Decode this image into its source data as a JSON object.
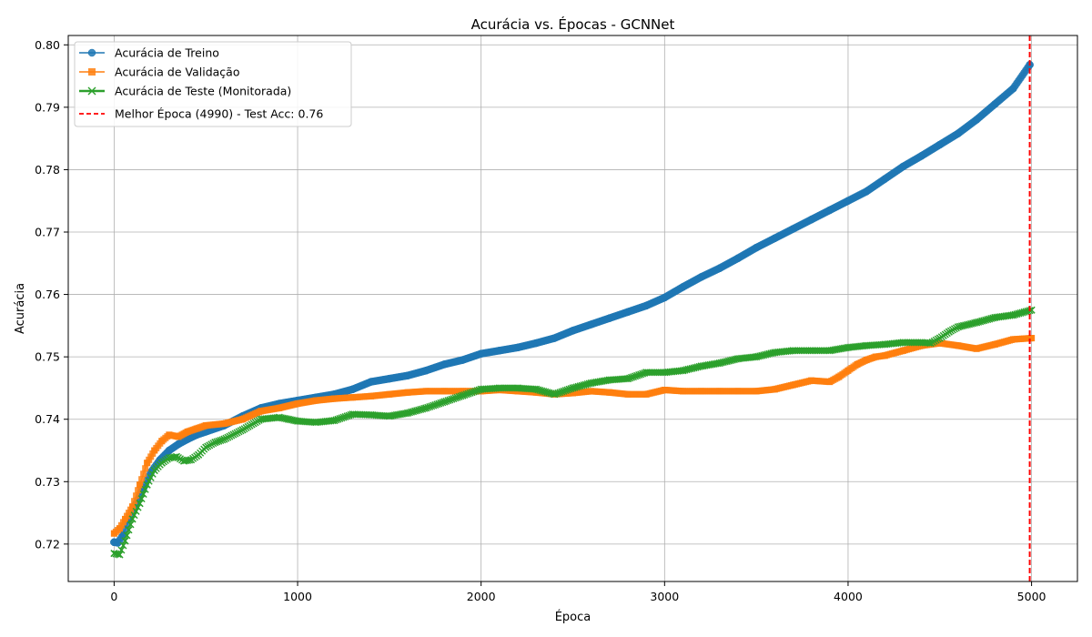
{
  "chart_data": {
    "type": "line",
    "title": "Acurácia vs. Épocas - GCNNet",
    "xlabel": "Época",
    "ylabel": "Acurácia",
    "xlim": [
      -250,
      5250
    ],
    "ylim": [
      0.714,
      0.8015
    ],
    "xticks": [
      0,
      1000,
      2000,
      3000,
      4000,
      5000
    ],
    "yticks": [
      0.72,
      0.73,
      0.74,
      0.75,
      0.76,
      0.77,
      0.78,
      0.79,
      0.8
    ],
    "xtick_labels": [
      "0",
      "1000",
      "2000",
      "3000",
      "4000",
      "5000"
    ],
    "ytick_labels": [
      "0.72",
      "0.73",
      "0.74",
      "0.75",
      "0.76",
      "0.77",
      "0.78",
      "0.79",
      "0.80"
    ],
    "grid": true,
    "legend_position": "top-left",
    "series": [
      {
        "name": "Acurácia de Treino",
        "color": "#1f77b4",
        "marker": "circle",
        "x": [
          0,
          20,
          50,
          80,
          120,
          160,
          200,
          250,
          300,
          350,
          400,
          450,
          500,
          600,
          700,
          800,
          900,
          1000,
          1100,
          1200,
          1300,
          1400,
          1500,
          1600,
          1700,
          1800,
          1900,
          2000,
          2100,
          2200,
          2300,
          2400,
          2500,
          2600,
          2700,
          2800,
          2900,
          3000,
          3100,
          3200,
          3300,
          3400,
          3500,
          3600,
          3700,
          3800,
          3900,
          4000,
          4100,
          4200,
          4300,
          4400,
          4500,
          4600,
          4700,
          4800,
          4900,
          4990
        ],
        "y": [
          0.7203,
          0.7202,
          0.7215,
          0.724,
          0.7265,
          0.729,
          0.7315,
          0.7335,
          0.735,
          0.736,
          0.7368,
          0.7375,
          0.738,
          0.739,
          0.7405,
          0.7418,
          0.7425,
          0.743,
          0.7435,
          0.744,
          0.7448,
          0.746,
          0.7465,
          0.747,
          0.7478,
          0.7488,
          0.7495,
          0.7505,
          0.751,
          0.7515,
          0.7522,
          0.753,
          0.7542,
          0.7552,
          0.7562,
          0.7572,
          0.7582,
          0.7595,
          0.7612,
          0.7628,
          0.7642,
          0.7658,
          0.7675,
          0.769,
          0.7705,
          0.772,
          0.7735,
          0.775,
          0.7765,
          0.7785,
          0.7805,
          0.7822,
          0.784,
          0.7858,
          0.788,
          0.7905,
          0.793,
          0.7968
        ]
      },
      {
        "name": "Acurácia de Validação",
        "color": "#ff7f0e",
        "marker": "square",
        "x": [
          0,
          30,
          60,
          100,
          140,
          180,
          220,
          260,
          300,
          350,
          400,
          450,
          500,
          600,
          700,
          800,
          900,
          1000,
          1100,
          1200,
          1300,
          1400,
          1500,
          1600,
          1700,
          1800,
          1900,
          2000,
          2100,
          2200,
          2300,
          2400,
          2500,
          2600,
          2700,
          2800,
          2900,
          3000,
          3100,
          3200,
          3300,
          3400,
          3500,
          3600,
          3700,
          3800,
          3900,
          3950,
          4000,
          4050,
          4100,
          4150,
          4200,
          4300,
          4400,
          4500,
          4600,
          4700,
          4800,
          4900,
          5000
        ],
        "y": [
          0.7217,
          0.7225,
          0.724,
          0.726,
          0.7295,
          0.733,
          0.735,
          0.7365,
          0.7375,
          0.7372,
          0.738,
          0.7385,
          0.739,
          0.7393,
          0.74,
          0.7413,
          0.7418,
          0.7425,
          0.743,
          0.7433,
          0.7435,
          0.7437,
          0.744,
          0.7443,
          0.7445,
          0.7445,
          0.7445,
          0.7445,
          0.7447,
          0.7445,
          0.7443,
          0.744,
          0.7442,
          0.7445,
          0.7443,
          0.744,
          0.744,
          0.7447,
          0.7445,
          0.7445,
          0.7445,
          0.7445,
          0.7445,
          0.7448,
          0.7455,
          0.7462,
          0.746,
          0.7468,
          0.7478,
          0.7488,
          0.7495,
          0.75,
          0.7502,
          0.751,
          0.7518,
          0.7522,
          0.7518,
          0.7513,
          0.752,
          0.7528,
          0.753
        ]
      },
      {
        "name": "Acurácia de Teste (Monitorada)",
        "color": "#2ca02c",
        "marker": "x",
        "x": [
          0,
          30,
          60,
          100,
          140,
          180,
          220,
          260,
          300,
          340,
          380,
          420,
          460,
          500,
          550,
          600,
          700,
          800,
          900,
          950,
          1000,
          1100,
          1200,
          1300,
          1400,
          1500,
          1600,
          1700,
          1800,
          1900,
          2000,
          2100,
          2200,
          2300,
          2400,
          2500,
          2600,
          2700,
          2800,
          2900,
          3000,
          3100,
          3200,
          3300,
          3400,
          3500,
          3600,
          3700,
          3800,
          3900,
          4000,
          4100,
          4200,
          4300,
          4400,
          4450,
          4500,
          4550,
          4600,
          4700,
          4800,
          4900,
          5000
        ],
        "y": [
          0.7185,
          0.7183,
          0.7205,
          0.724,
          0.7265,
          0.7295,
          0.7318,
          0.733,
          0.7338,
          0.734,
          0.7333,
          0.7335,
          0.7343,
          0.7355,
          0.7363,
          0.7368,
          0.7383,
          0.74,
          0.7403,
          0.74,
          0.7397,
          0.7395,
          0.7398,
          0.7408,
          0.7407,
          0.7405,
          0.741,
          0.7418,
          0.7428,
          0.7438,
          0.7448,
          0.745,
          0.745,
          0.7448,
          0.744,
          0.745,
          0.7458,
          0.7463,
          0.7465,
          0.7475,
          0.7475,
          0.7478,
          0.7485,
          0.749,
          0.7497,
          0.75,
          0.7507,
          0.751,
          0.751,
          0.751,
          0.7515,
          0.7518,
          0.752,
          0.7523,
          0.7523,
          0.7522,
          0.753,
          0.754,
          0.7548,
          0.7555,
          0.7563,
          0.7567,
          0.7575
        ]
      }
    ],
    "vline": {
      "x": 4990,
      "color": "#ff0000",
      "label": "Melhor Época (4990) - Test Acc: 0.76"
    }
  }
}
